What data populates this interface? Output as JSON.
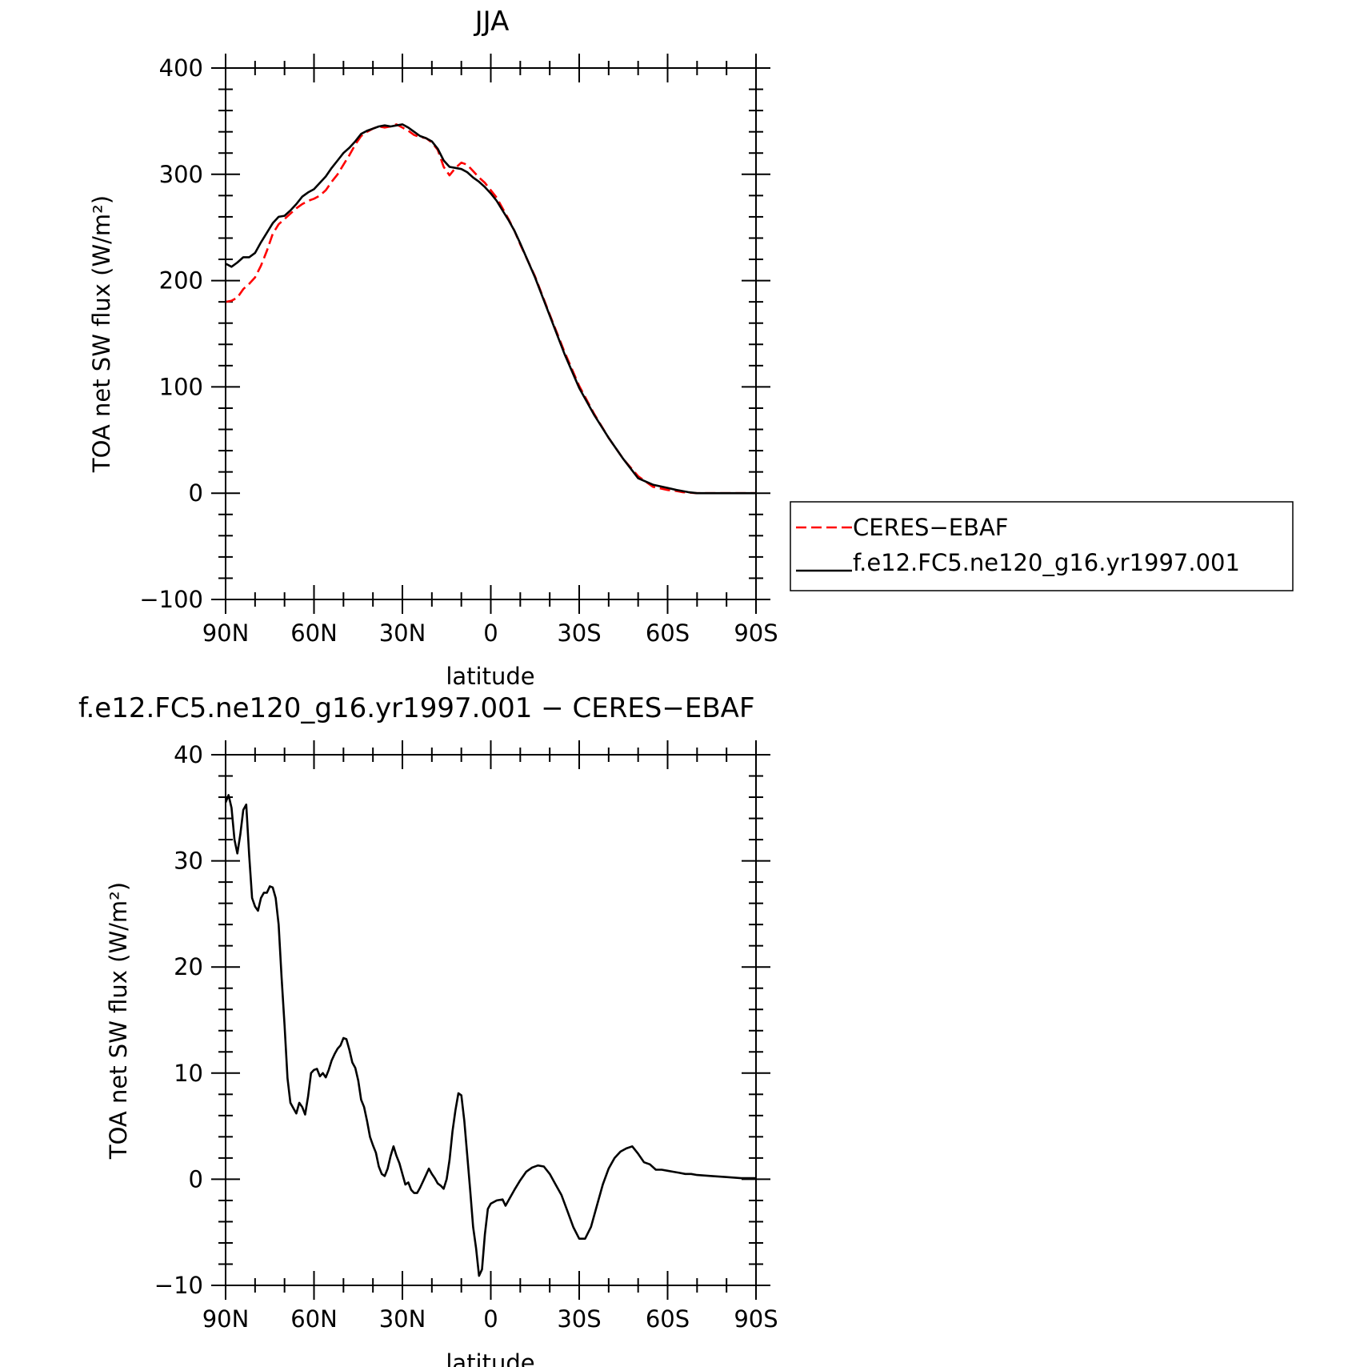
{
  "chart_data": [
    {
      "type": "line",
      "title": "JJA",
      "xlabel": "latitude",
      "ylabel": "TOA net SW flux (W/m²)",
      "ylim": [
        -100,
        400
      ],
      "xlim": [
        90,
        -90
      ],
      "x_ticks": [
        90,
        60,
        30,
        0,
        -30,
        -60,
        -90
      ],
      "x_tick_labels": [
        "90N",
        "60N",
        "30N",
        "0",
        "30S",
        "60S",
        "90S"
      ],
      "y_ticks": [
        -100,
        0,
        100,
        200,
        300,
        400
      ],
      "y_tick_labels": [
        "−100",
        "0",
        "100",
        "200",
        "300",
        "400"
      ],
      "legend": {
        "placement": "right"
      },
      "series": [
        {
          "name": "CERES−EBAF",
          "color": "#ff0000",
          "style": "dashed",
          "x": [
            90,
            88,
            86,
            84,
            82,
            80,
            78,
            76,
            74,
            72,
            70,
            68,
            66,
            64,
            62,
            60,
            58,
            56,
            54,
            52,
            50,
            48,
            46,
            44,
            42,
            40,
            38,
            36,
            34,
            32,
            30,
            28,
            26,
            24,
            22,
            20,
            18,
            16,
            14,
            12,
            10,
            8,
            6,
            4,
            2,
            0,
            -2,
            -4,
            -6,
            -8,
            -10,
            -15,
            -20,
            -25,
            -30,
            -35,
            -40,
            -45,
            -50,
            -55,
            -60,
            -63,
            -65,
            -67,
            -70,
            -75,
            -80,
            -85,
            -90
          ],
          "values": [
            180,
            181,
            184,
            192,
            197,
            203,
            214,
            228,
            244,
            253,
            258,
            263,
            268,
            272,
            275,
            277,
            280,
            285,
            293,
            300,
            309,
            318,
            328,
            336,
            340,
            343,
            345,
            344,
            345,
            347,
            344,
            341,
            337,
            335,
            334,
            330,
            323,
            307,
            299,
            306,
            311,
            309,
            303,
            297,
            292,
            285,
            278,
            268,
            258,
            247,
            234,
            204,
            168,
            133,
            101,
            75,
            52,
            32,
            16,
            6,
            3,
            2,
            1,
            0.5,
            0,
            0,
            0,
            0,
            0
          ]
        },
        {
          "name": "f.e12.FC5.ne120_g16.yr1997.001",
          "color": "#000000",
          "style": "solid",
          "x": [
            90,
            88,
            86,
            84,
            82,
            80,
            78,
            76,
            74,
            72,
            70,
            68,
            66,
            64,
            62,
            60,
            58,
            56,
            54,
            52,
            50,
            48,
            46,
            44,
            42,
            40,
            38,
            36,
            34,
            32,
            30,
            28,
            26,
            24,
            22,
            20,
            18,
            16,
            14,
            12,
            10,
            8,
            6,
            4,
            2,
            0,
            -2,
            -4,
            -6,
            -8,
            -10,
            -15,
            -20,
            -25,
            -30,
            -35,
            -40,
            -45,
            -50,
            -55,
            -60,
            -63,
            -65,
            -67,
            -70,
            -75,
            -80,
            -85,
            -90
          ],
          "values": [
            216,
            213,
            217,
            222,
            222,
            226,
            236,
            245,
            254,
            260,
            261,
            266,
            272,
            279,
            283,
            286,
            292,
            298,
            306,
            313,
            320,
            325,
            331,
            338,
            341,
            343,
            345,
            346,
            345,
            346,
            347,
            344,
            340,
            336,
            334,
            331,
            324,
            313,
            307,
            306,
            305,
            302,
            297,
            293,
            288,
            282,
            275,
            266,
            257,
            247,
            235,
            203,
            167,
            131,
            99,
            74,
            52,
            32,
            14,
            8,
            5,
            3,
            2,
            1,
            0,
            0,
            0,
            0,
            0
          ]
        }
      ]
    },
    {
      "type": "line",
      "title": "f.e12.FC5.ne120_g16.yr1997.001 − CERES−EBAF",
      "xlabel": "latitude",
      "ylabel": "TOA net SW flux (W/m²)",
      "ylim": [
        -10,
        40
      ],
      "xlim": [
        90,
        -90
      ],
      "x_ticks": [
        90,
        60,
        30,
        0,
        -30,
        -60,
        -90
      ],
      "x_tick_labels": [
        "90N",
        "60N",
        "30N",
        "0",
        "30S",
        "60S",
        "90S"
      ],
      "y_ticks": [
        -10,
        0,
        10,
        20,
        30,
        40
      ],
      "y_tick_labels": [
        "−10",
        "0",
        "10",
        "20",
        "30",
        "40"
      ],
      "series": [
        {
          "color": "#000000",
          "style": "solid",
          "x": [
            90,
            89,
            88,
            87,
            86,
            85,
            84,
            83,
            82,
            81,
            80,
            79,
            78,
            77,
            76,
            75,
            74,
            73,
            72,
            71,
            70,
            69,
            68,
            67,
            66,
            65,
            64,
            63,
            62,
            61,
            60,
            59,
            58,
            57,
            56,
            55,
            54,
            53,
            52,
            51,
            50,
            49,
            48,
            47,
            46,
            45,
            44,
            43,
            42,
            41,
            40,
            39,
            38,
            37,
            36,
            35,
            34,
            33,
            32,
            31,
            30,
            29,
            28,
            27,
            26,
            25,
            24,
            23,
            22,
            21,
            20,
            19,
            18,
            17,
            16,
            15,
            14,
            13,
            12,
            11,
            10,
            9,
            8,
            7,
            6,
            5,
            4,
            3,
            2,
            1,
            0,
            -2,
            -4,
            -5,
            -6,
            -8,
            -10,
            -12,
            -14,
            -16,
            -18,
            -20,
            -22,
            -24,
            -26,
            -28,
            -30,
            -32,
            -34,
            -36,
            -38,
            -40,
            -42,
            -44,
            -46,
            -48,
            -50,
            -52,
            -54,
            -56,
            -58,
            -60,
            -62,
            -64,
            -66,
            -68,
            -70,
            -75,
            -80,
            -85,
            -90
          ],
          "values": [
            35.5,
            36.2,
            35.0,
            32.0,
            30.7,
            32.5,
            34.8,
            35.3,
            30.5,
            26.5,
            25.7,
            25.3,
            26.5,
            27.0,
            27.0,
            27.6,
            27.5,
            26.5,
            24.0,
            19.0,
            14.5,
            9.5,
            7.2,
            6.7,
            6.2,
            7.2,
            6.8,
            6.1,
            7.8,
            10.0,
            10.3,
            10.4,
            9.7,
            10.0,
            9.6,
            10.3,
            11.2,
            11.8,
            12.3,
            12.6,
            13.3,
            13.2,
            12.2,
            11.0,
            10.5,
            9.3,
            7.5,
            6.8,
            5.5,
            4.0,
            3.2,
            2.5,
            1.2,
            0.5,
            0.3,
            1.0,
            2.2,
            3.1,
            2.2,
            1.5,
            0.5,
            -0.5,
            -0.3,
            -1.0,
            -1.3,
            -1.3,
            -0.8,
            -0.2,
            0.4,
            1.0,
            0.5,
            0.1,
            -0.4,
            -0.6,
            -0.9,
            0.0,
            1.8,
            4.5,
            6.5,
            8.1,
            7.9,
            5.5,
            2.3,
            -1.0,
            -4.5,
            -6.5,
            -9.1,
            -8.5,
            -5.2,
            -2.8,
            -2.3,
            -2.0,
            -1.9,
            -2.5,
            -2.0,
            -1.0,
            -0.1,
            0.7,
            1.1,
            1.3,
            1.2,
            0.5,
            -0.5,
            -1.5,
            -3.0,
            -4.5,
            -5.6,
            -5.6,
            -4.5,
            -2.5,
            -0.5,
            1.0,
            2.0,
            2.6,
            2.9,
            3.1,
            2.4,
            1.6,
            1.4,
            0.9,
            0.9,
            0.8,
            0.7,
            0.6,
            0.5,
            0.5,
            0.4,
            0.3,
            0.2,
            0.1,
            0.1
          ]
        }
      ]
    }
  ]
}
